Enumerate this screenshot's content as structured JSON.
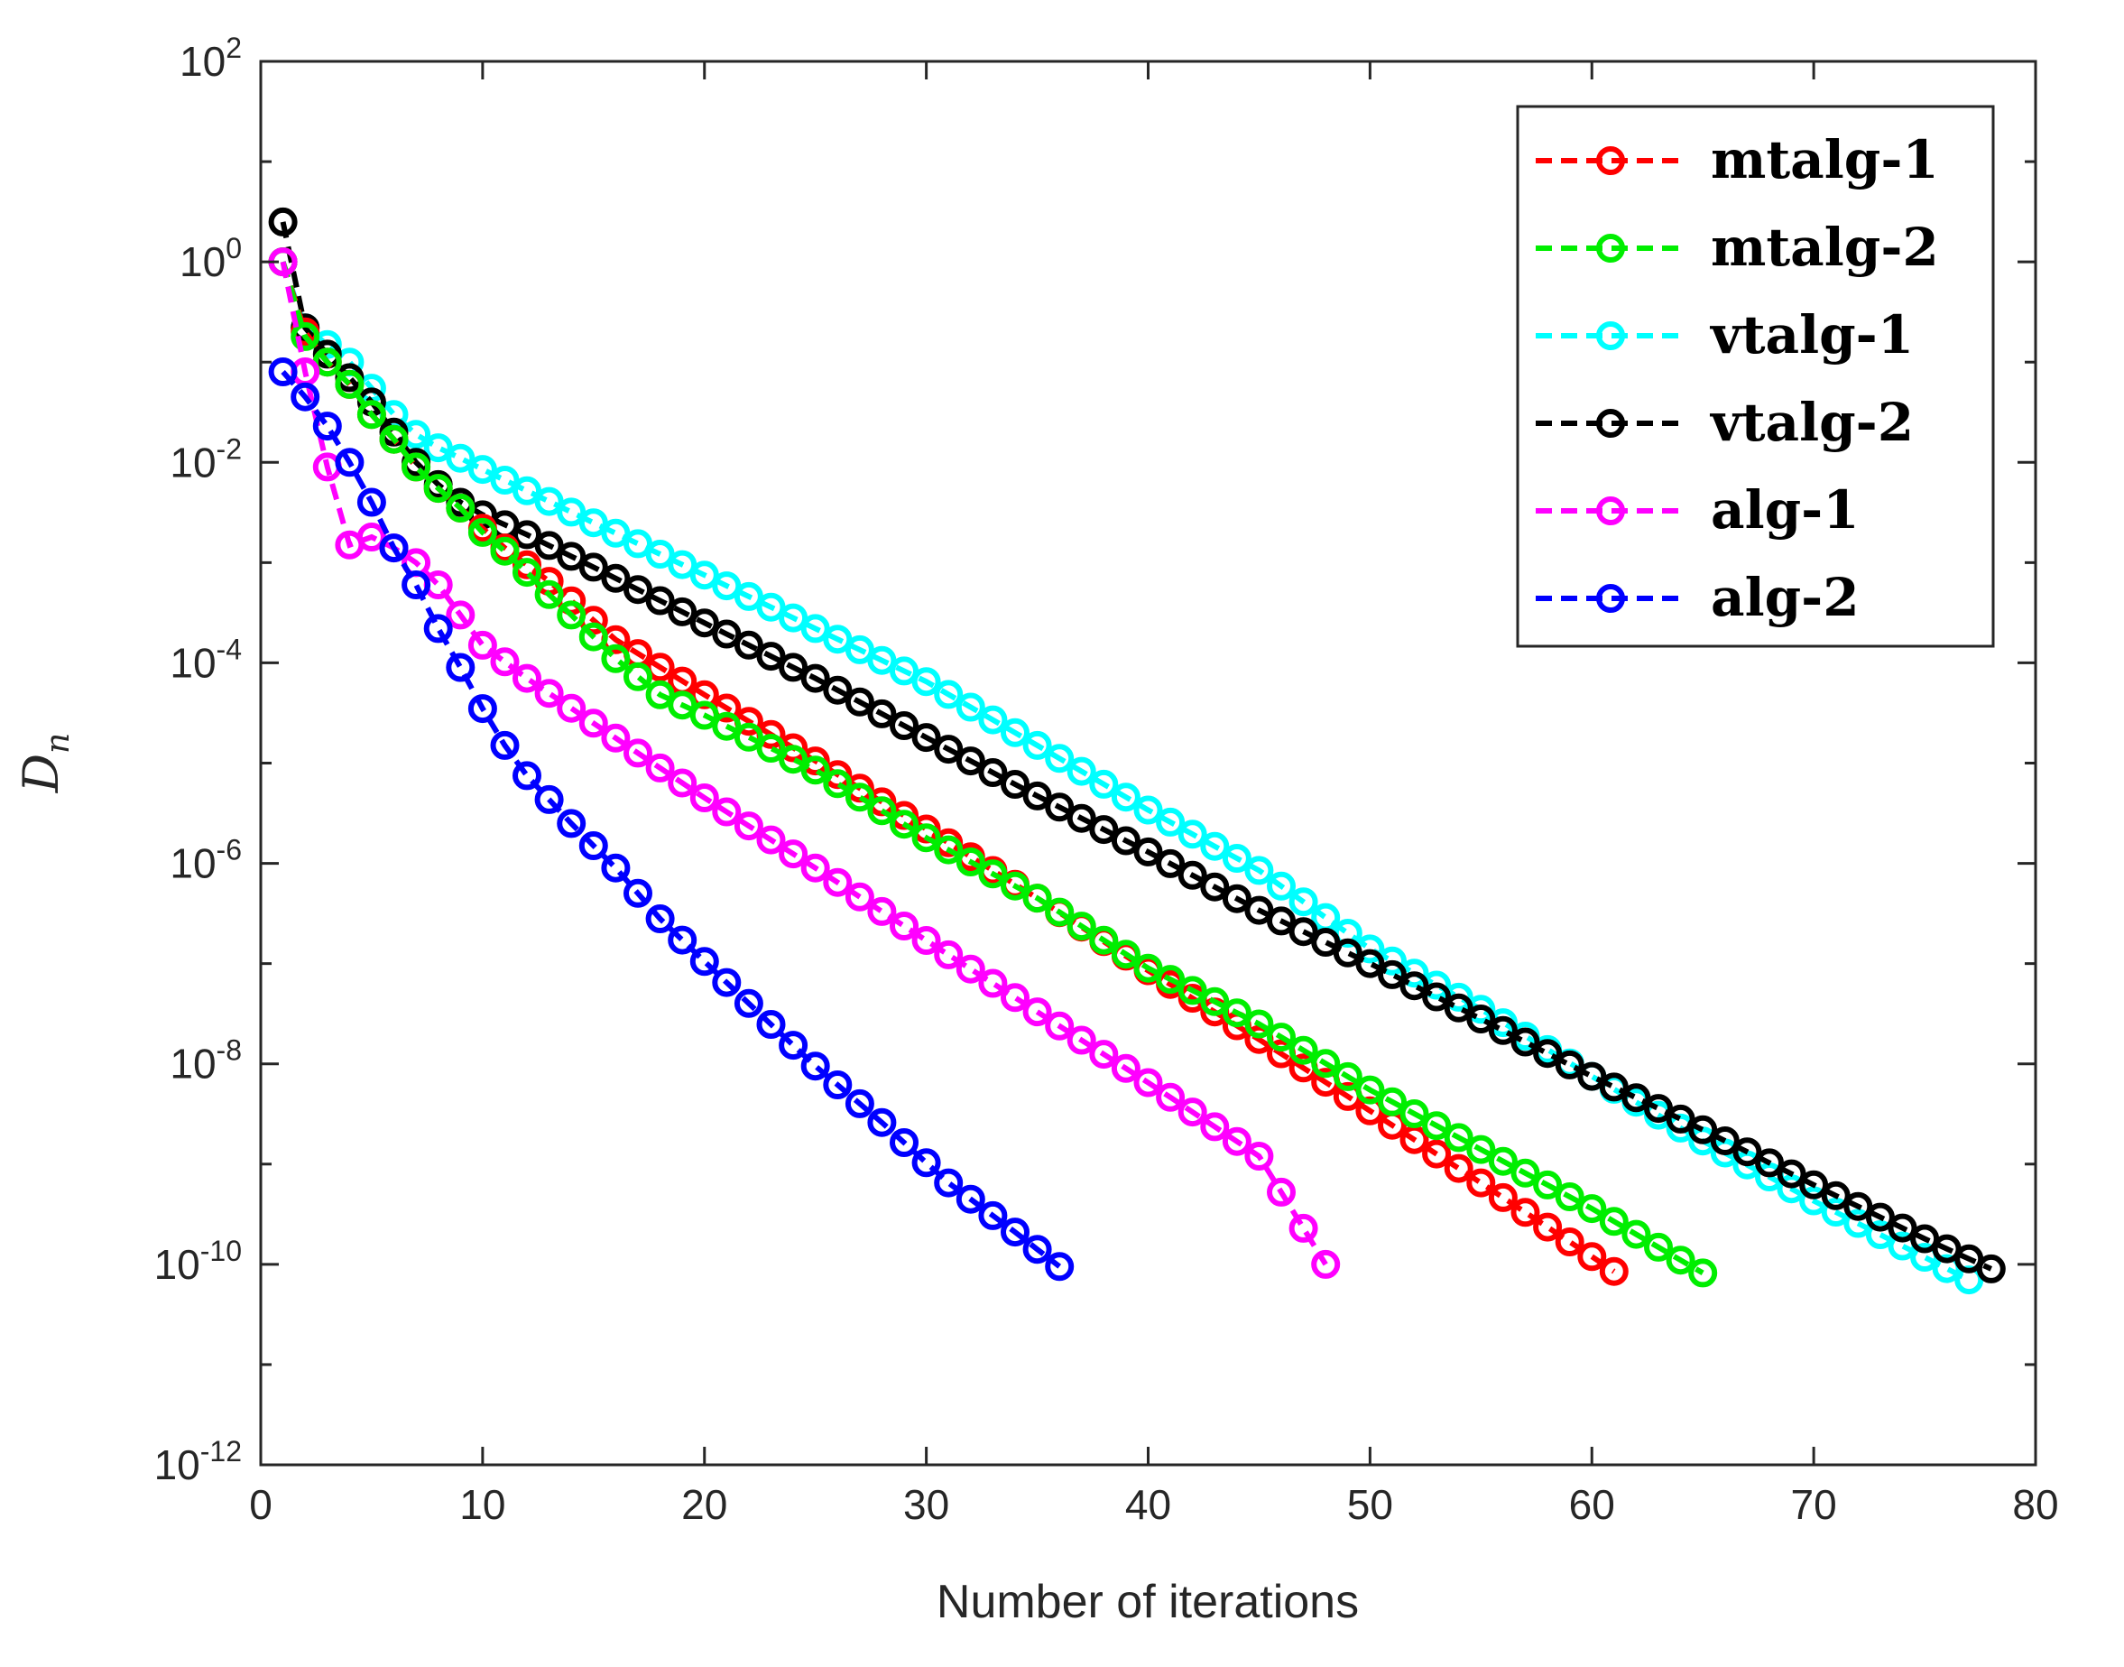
{
  "chart_data": {
    "type": "line",
    "title": "",
    "xlabel": "Number of iterations",
    "ylabel": "D",
    "ylabel_subscript": "n",
    "xlim": [
      0,
      80
    ],
    "ylim": [
      1e-12,
      100
    ],
    "yscale": "log",
    "grid": false,
    "legend_position": "top-right",
    "x_ticks": [
      "0",
      "10",
      "20",
      "30",
      "40",
      "50",
      "60",
      "70",
      "80"
    ],
    "y_ticks": [
      {
        "base": "10",
        "exp": "2"
      },
      {
        "base": "10",
        "exp": "0"
      },
      {
        "base": "10",
        "exp": "-2"
      },
      {
        "base": "10",
        "exp": "-4"
      },
      {
        "base": "10",
        "exp": "-6"
      },
      {
        "base": "10",
        "exp": "-8"
      },
      {
        "base": "10",
        "exp": "-10"
      },
      {
        "base": "10",
        "exp": "-12"
      }
    ],
    "series": [
      {
        "name": "mtalg-1",
        "color": "#ff0000",
        "marker": "circle",
        "line": "dashed",
        "anchors": [
          [
            1,
            1.0
          ],
          [
            2,
            0.2
          ],
          [
            3,
            0.1
          ],
          [
            4,
            0.06
          ],
          [
            5,
            0.03
          ],
          [
            6,
            0.017
          ],
          [
            7,
            0.009
          ],
          [
            8,
            0.0055
          ],
          [
            9,
            0.0035
          ],
          [
            10,
            0.0022
          ],
          [
            11,
            0.0014
          ],
          [
            12,
            0.00095
          ],
          [
            13,
            0.00065
          ],
          [
            16,
            0.00017
          ],
          [
            20,
            4.8e-05
          ],
          [
            25,
            1.05e-05
          ],
          [
            30,
            2.2e-06
          ],
          [
            35,
            4.5e-07
          ],
          [
            40,
            8.5e-08
          ],
          [
            45,
            1.75e-08
          ],
          [
            50,
            3.4e-09
          ],
          [
            55,
            6.5e-10
          ],
          [
            61,
            8.5e-11
          ]
        ]
      },
      {
        "name": "mtalg-2",
        "color": "#00ee00",
        "marker": "circle",
        "line": "dashed",
        "anchors": [
          [
            1,
            1.0
          ],
          [
            2,
            0.18
          ],
          [
            3,
            0.1
          ],
          [
            4,
            0.06
          ],
          [
            5,
            0.03
          ],
          [
            6,
            0.017
          ],
          [
            7,
            0.009
          ],
          [
            8,
            0.0055
          ],
          [
            9,
            0.0035
          ],
          [
            10,
            0.002
          ],
          [
            11,
            0.0013
          ],
          [
            12,
            0.0008
          ],
          [
            13,
            0.00048
          ],
          [
            14,
            0.0003
          ],
          [
            16,
            0.00011
          ],
          [
            18,
            4.8e-05
          ],
          [
            20,
            3e-05
          ],
          [
            25,
            8.5e-06
          ],
          [
            30,
            1.8e-06
          ],
          [
            35,
            4.5e-07
          ],
          [
            40,
            9e-08
          ],
          [
            45,
            2.5e-08
          ],
          [
            50,
            5.5e-09
          ],
          [
            55,
            1.4e-09
          ],
          [
            60,
            3.6e-10
          ],
          [
            65,
            8.2e-11
          ]
        ]
      },
      {
        "name": "vtalg-1",
        "color": "#00ffff",
        "marker": "circle",
        "line": "dashed",
        "anchors": [
          [
            1,
            1.0
          ],
          [
            2,
            0.22
          ],
          [
            3,
            0.15
          ],
          [
            4,
            0.1
          ],
          [
            5,
            0.055
          ],
          [
            6,
            0.03
          ],
          [
            7,
            0.019
          ],
          [
            8,
            0.014
          ],
          [
            9,
            0.011
          ],
          [
            10,
            0.0085
          ],
          [
            12,
            0.0052
          ],
          [
            15,
            0.0025
          ],
          [
            20,
            0.00075
          ],
          [
            25,
            0.00022
          ],
          [
            30,
            6.5e-05
          ],
          [
            35,
            1.5e-05
          ],
          [
            40,
            3.4e-06
          ],
          [
            45,
            8.5e-07
          ],
          [
            50,
            1.4e-07
          ],
          [
            55,
            3.5e-08
          ],
          [
            60,
            7.5e-09
          ],
          [
            65,
            1.7e-09
          ],
          [
            70,
            4.3e-10
          ],
          [
            77,
            7e-11
          ]
        ]
      },
      {
        "name": "vtalg-2",
        "color": "#000000",
        "marker": "circle",
        "line": "dashed",
        "anchors": [
          [
            1,
            2.5
          ],
          [
            2,
            0.22
          ],
          [
            3,
            0.12
          ],
          [
            4,
            0.07
          ],
          [
            5,
            0.04
          ],
          [
            6,
            0.02
          ],
          [
            7,
            0.01
          ],
          [
            8,
            0.006
          ],
          [
            9,
            0.004
          ],
          [
            10,
            0.003
          ],
          [
            12,
            0.0019
          ],
          [
            15,
            0.0009
          ],
          [
            20,
            0.00025
          ],
          [
            25,
            7e-05
          ],
          [
            30,
            1.8e-05
          ],
          [
            35,
            4.7e-06
          ],
          [
            40,
            1.3e-06
          ],
          [
            45,
            3.4e-07
          ],
          [
            50,
            1e-07
          ],
          [
            55,
            2.8e-08
          ],
          [
            60,
            7.5e-09
          ],
          [
            65,
            2.2e-09
          ],
          [
            70,
            6.2e-10
          ],
          [
            75,
            1.8e-10
          ],
          [
            78,
            9e-11
          ]
        ]
      },
      {
        "name": "alg-1",
        "color": "#ff00ff",
        "marker": "circle",
        "line": "dashed",
        "anchors": [
          [
            1,
            1.0
          ],
          [
            2,
            0.08
          ],
          [
            3,
            0.009
          ],
          [
            4,
            0.0015
          ],
          [
            5,
            0.0018
          ],
          [
            6,
            0.0014
          ],
          [
            7,
            0.001
          ],
          [
            8,
            0.0006
          ],
          [
            9,
            0.0003
          ],
          [
            10,
            0.00015
          ],
          [
            12,
            7e-05
          ],
          [
            15,
            2.5e-05
          ],
          [
            20,
            4.5e-06
          ],
          [
            25,
            9e-07
          ],
          [
            30,
            1.7e-07
          ],
          [
            35,
            3.3e-08
          ],
          [
            40,
            6.5e-09
          ],
          [
            45,
            1.2e-09
          ],
          [
            48,
            1e-10
          ]
        ]
      },
      {
        "name": "alg-2",
        "color": "#0000ff",
        "marker": "circle",
        "line": "dashed",
        "anchors": [
          [
            1,
            0.08
          ],
          [
            2,
            0.045
          ],
          [
            3,
            0.023
          ],
          [
            4,
            0.01
          ],
          [
            5,
            0.004
          ],
          [
            6,
            0.0014
          ],
          [
            7,
            0.0006
          ],
          [
            8,
            0.00022
          ],
          [
            9,
            9e-05
          ],
          [
            10,
            3.5e-05
          ],
          [
            11,
            1.5e-05
          ],
          [
            12,
            7.5e-06
          ],
          [
            14,
            2.5e-06
          ],
          [
            16,
            9e-07
          ],
          [
            18,
            2.8e-07
          ],
          [
            20,
            1.05e-07
          ],
          [
            22,
            4e-08
          ],
          [
            25,
            9.5e-09
          ],
          [
            28,
            2.6e-09
          ],
          [
            31,
            6.5e-10
          ],
          [
            34,
            2.1e-10
          ],
          [
            36,
            9.5e-11
          ]
        ]
      }
    ]
  }
}
